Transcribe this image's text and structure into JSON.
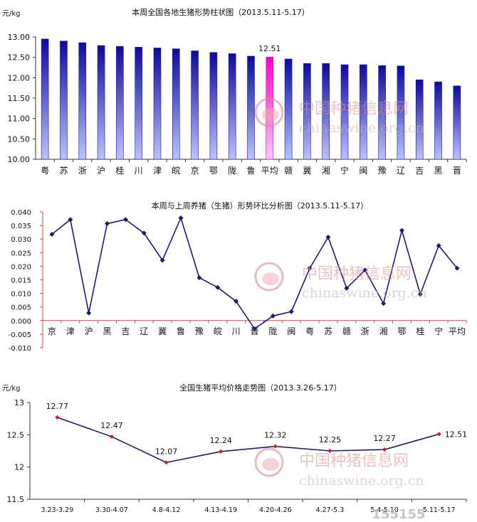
{
  "colors": {
    "bar_blue_top": "#0a0aa0",
    "bar_blue_bottom": "#b8c4ff",
    "bar_highlight_top": "#ff00cc",
    "bar_highlight_bottom": "#ffc8f4",
    "line_navy": "#1a1a7a",
    "marker_red": "#e81010",
    "axis_red": "#e04040",
    "watermark": "#d8a8a8"
  },
  "watermark": {
    "cn": "中国种猪信息网",
    "en": "chinaswine.org.cn"
  },
  "footer_logo": "155155",
  "chart_data": [
    {
      "type": "bar",
      "title": "本周全国各地生猪形势柱状图（2013.5.11-5.17）",
      "ylabel": "元/kg",
      "ylim": [
        10.0,
        13.0
      ],
      "yticks": [
        "13.00",
        "12.50",
        "12.00",
        "11.50",
        "11.00",
        "10.50",
        "10.00"
      ],
      "grid": false,
      "categories": [
        "粤",
        "苏",
        "浙",
        "沪",
        "桂",
        "川",
        "津",
        "皖",
        "京",
        "鄂",
        "陇",
        "鲁",
        "平均",
        "赣",
        "冀",
        "湘",
        "宁",
        "闽",
        "豫",
        "辽",
        "吉",
        "黑",
        "晋"
      ],
      "values": [
        12.95,
        12.9,
        12.86,
        12.79,
        12.77,
        12.75,
        12.73,
        12.71,
        12.66,
        12.62,
        12.59,
        12.53,
        12.51,
        12.46,
        12.35,
        12.35,
        12.32,
        12.32,
        12.3,
        12.29,
        11.95,
        11.9,
        11.8
      ],
      "highlight": "平均",
      "data_labels": [
        {
          "category": "平均",
          "text": "12.51"
        }
      ]
    },
    {
      "type": "line",
      "title": "本周与上周养猪（生猪）形势环比分析图（2013.5.11-5.17）",
      "ylim": [
        -0.01,
        0.04
      ],
      "yticks": [
        "0.040",
        "0.035",
        "0.030",
        "0.025",
        "0.020",
        "0.015",
        "0.010",
        "0.005",
        "0.000",
        "-0.005",
        "-0.010"
      ],
      "grid": false,
      "categories": [
        "京",
        "津",
        "沪",
        "黑",
        "吉",
        "辽",
        "冀",
        "鲁",
        "豫",
        "皖",
        "川",
        "晋",
        "陇",
        "闽",
        "粤",
        "苏",
        "赣",
        "浙",
        "湘",
        "鄂",
        "桂",
        "宁",
        "平均"
      ],
      "values": [
        0.0318,
        0.0372,
        0.0028,
        0.0357,
        0.0372,
        0.0322,
        0.0222,
        0.0378,
        0.0158,
        0.0122,
        0.0071,
        -0.003,
        0.0017,
        0.0033,
        0.0193,
        0.0307,
        0.0119,
        0.0186,
        0.0063,
        0.0332,
        0.0097,
        0.0276,
        0.0193
      ]
    },
    {
      "type": "line",
      "title": "全国生猪平均价格走势图（2013.3.26-5.17）",
      "ylabel": "元/kg",
      "ylim": [
        11.5,
        13.0
      ],
      "yticks": [
        "13",
        "12.5",
        "12",
        "11.5"
      ],
      "grid": false,
      "categories": [
        "3.23-3.29",
        "3.30-4.07",
        "4.8-4.12",
        "4.13-4.19",
        "4.20-4.26",
        "4.27-5.3",
        "5.4-5.10",
        "5.11-5.17"
      ],
      "values": [
        12.77,
        12.47,
        12.07,
        12.24,
        12.32,
        12.25,
        12.27,
        12.51
      ],
      "data_labels": [
        "12.77",
        "12.47",
        "12.07",
        "12.24",
        "12.32",
        "12.25",
        "12.27",
        "12.51"
      ]
    }
  ]
}
